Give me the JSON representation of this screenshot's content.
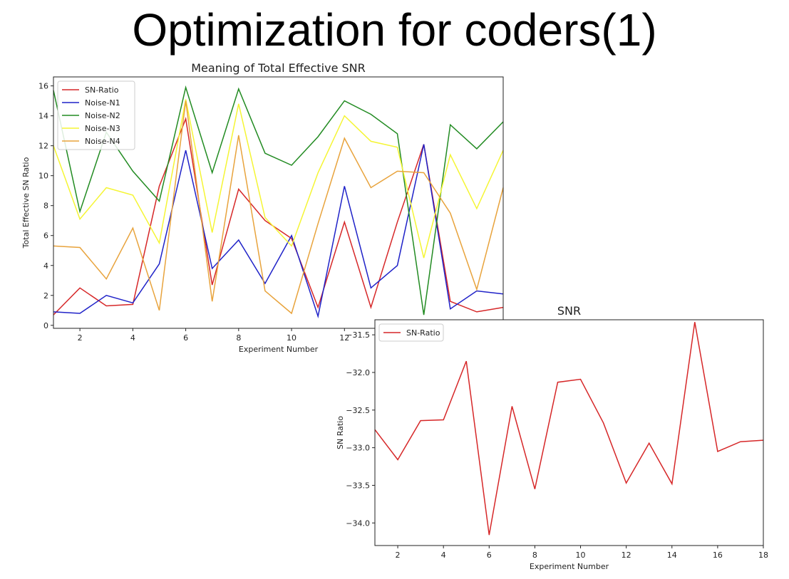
{
  "slide": {
    "title": "Optimization for coders(1)"
  },
  "chart_data": [
    {
      "type": "line",
      "title": "Meaning of Total Effective SNR",
      "xlabel": "Experiment Number",
      "ylabel": "Total Effective SN Ratio",
      "xlim": [
        1,
        18
      ],
      "ylim": [
        -0.2,
        16.6
      ],
      "xticks": [
        2,
        4,
        6,
        8,
        10,
        12
      ],
      "yticks": [
        0,
        2,
        4,
        6,
        8,
        10,
        12,
        14,
        16
      ],
      "legend": "top-left",
      "grid": false,
      "x": [
        1,
        2,
        3,
        4,
        5,
        6,
        7,
        8,
        9,
        10,
        11,
        12,
        13,
        14,
        15,
        16,
        17,
        18
      ],
      "series": [
        {
          "name": "SN-Ratio",
          "color": "#d62728",
          "values": [
            0.7,
            2.5,
            1.3,
            1.4,
            9.3,
            13.8,
            2.7,
            9.1,
            7.0,
            5.8,
            1.2,
            6.9,
            1.2,
            6.9,
            12.1,
            1.6,
            0.9,
            1.2
          ]
        },
        {
          "name": "Noise-N1",
          "color": "#1f22c8",
          "values": [
            0.9,
            0.8,
            2.0,
            1.5,
            4.1,
            11.7,
            3.8,
            5.7,
            2.8,
            6.0,
            0.6,
            9.3,
            2.5,
            4.0,
            12.1,
            1.1,
            2.3,
            2.1
          ]
        },
        {
          "name": "Noise-N2",
          "color": "#228b22",
          "values": [
            15.7,
            7.6,
            12.9,
            10.3,
            8.3,
            15.9,
            10.2,
            15.8,
            11.5,
            10.7,
            12.6,
            15.0,
            14.1,
            12.8,
            0.7,
            13.4,
            11.8,
            13.6
          ]
        },
        {
          "name": "Noise-N3",
          "color": "#f5f534",
          "values": [
            12.0,
            7.1,
            9.2,
            8.7,
            5.5,
            15.1,
            6.2,
            14.8,
            7.2,
            5.3,
            10.2,
            14.0,
            12.3,
            11.9,
            4.5,
            11.4,
            7.8,
            11.7
          ]
        },
        {
          "name": "Noise-N4",
          "color": "#e8a33c",
          "values": [
            5.3,
            5.2,
            3.1,
            6.5,
            1.0,
            15.0,
            1.6,
            12.7,
            2.3,
            0.8,
            6.8,
            12.5,
            9.2,
            10.3,
            10.2,
            7.5,
            2.4,
            9.2
          ]
        }
      ]
    },
    {
      "type": "line",
      "title": "SNR",
      "xlabel": "Experiment Number",
      "ylabel": "SN Ratio",
      "xlim": [
        1,
        18
      ],
      "ylim": [
        -34.3,
        -31.3
      ],
      "xticks": [
        2,
        4,
        6,
        8,
        10,
        12,
        14,
        16,
        18
      ],
      "yticks": [
        -34.0,
        -33.5,
        -33.0,
        -32.5,
        -32.0,
        -31.5
      ],
      "ytick_labels": [
        "−34.0",
        "−33.5",
        "−33.0",
        "−32.5",
        "−32.0",
        "−31.5"
      ],
      "legend": "top-left",
      "grid": false,
      "x": [
        1,
        2,
        3,
        4,
        5,
        6,
        7,
        8,
        9,
        10,
        11,
        12,
        13,
        14,
        15,
        16,
        17,
        18
      ],
      "series": [
        {
          "name": "SN-Ratio",
          "color": "#d62728",
          "values": [
            -32.76,
            -33.16,
            -32.64,
            -32.63,
            -31.85,
            -34.16,
            -32.45,
            -33.55,
            -32.13,
            -32.09,
            -32.67,
            -33.47,
            -32.94,
            -33.48,
            -31.33,
            -33.05,
            -32.92,
            -32.9
          ]
        }
      ]
    }
  ]
}
